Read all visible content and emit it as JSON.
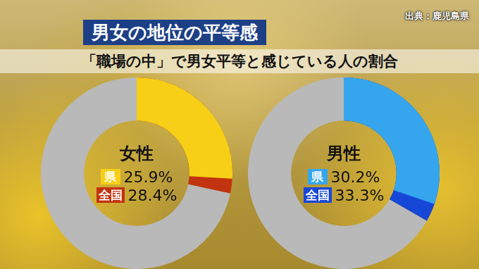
{
  "title": "男女の地位の平等感",
  "subtitle": "「職場の中」で男女平等と感じている人の割合",
  "source": "出典：鹿児島県",
  "chart_data": [
    {
      "type": "doughnut",
      "title": "女性",
      "color": "#b9b9b9",
      "series": [
        {
          "name": "県",
          "color": "#f6cf16",
          "values": [
            25.9
          ],
          "value_labels": [
            "25.9%"
          ]
        },
        {
          "name": "全国",
          "color": "#c2330f",
          "values": [
            28.4
          ],
          "value_labels": [
            "28.4%"
          ]
        }
      ]
    },
    {
      "type": "doughnut",
      "title": "男性",
      "color": "#b9b9b9",
      "series": [
        {
          "name": "県",
          "color": "#35a6ee",
          "values": [
            30.2
          ],
          "value_labels": [
            "30.2%"
          ]
        },
        {
          "name": "全国",
          "color": "#1747d6",
          "values": [
            33.3
          ],
          "value_labels": [
            "33.3%"
          ]
        }
      ]
    }
  ]
}
